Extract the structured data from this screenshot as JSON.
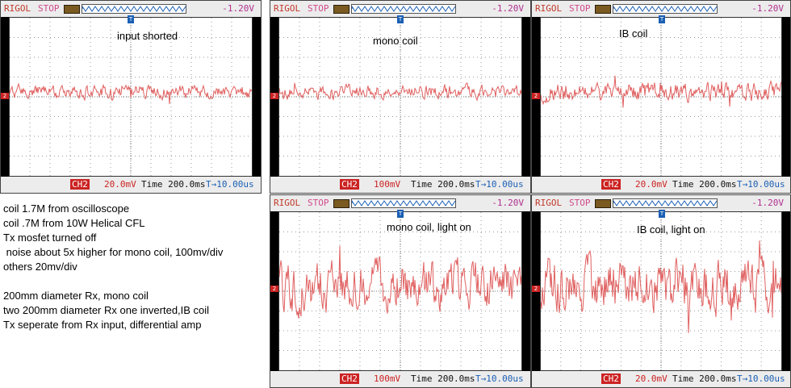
{
  "common": {
    "brand": "RIGOL",
    "status": "STOP",
    "trigger": "-1.20V",
    "channel": "CH2",
    "time": "Time 200.0ms",
    "offset": "T→10.00us",
    "trace_color": "#e06060"
  },
  "scopes": [
    {
      "id": "s1",
      "caption": "input shorted",
      "vdiv": "20.0mV",
      "amp": 0.55,
      "seed": 11
    },
    {
      "id": "s2",
      "caption": "mono coil",
      "vdiv": "100mV",
      "amp": 0.55,
      "seed": 23
    },
    {
      "id": "s3",
      "caption": "IB coil",
      "vdiv": "20.0mV",
      "amp": 0.75,
      "seed": 37
    },
    {
      "id": "s4",
      "caption": "mono coil, light on",
      "vdiv": "100mV",
      "amp": 1.9,
      "seed": 51
    },
    {
      "id": "s5",
      "caption": "IB coil, light on",
      "vdiv": "20.0mV",
      "amp": 2.1,
      "seed": 67
    }
  ],
  "notes": [
    "coil 1.7M from oscilloscope",
    "coil .7M from 10W Helical CFL",
    "Tx mosfet turned off",
    " noise about 5x higher for mono coil, 100mv/div",
    "others 20mv/div",
    "",
    "200mm diameter Rx, mono coil",
    "two 200mm diameter Rx one inverted,IB coil",
    "Tx seperate from Rx input, differential amp"
  ]
}
